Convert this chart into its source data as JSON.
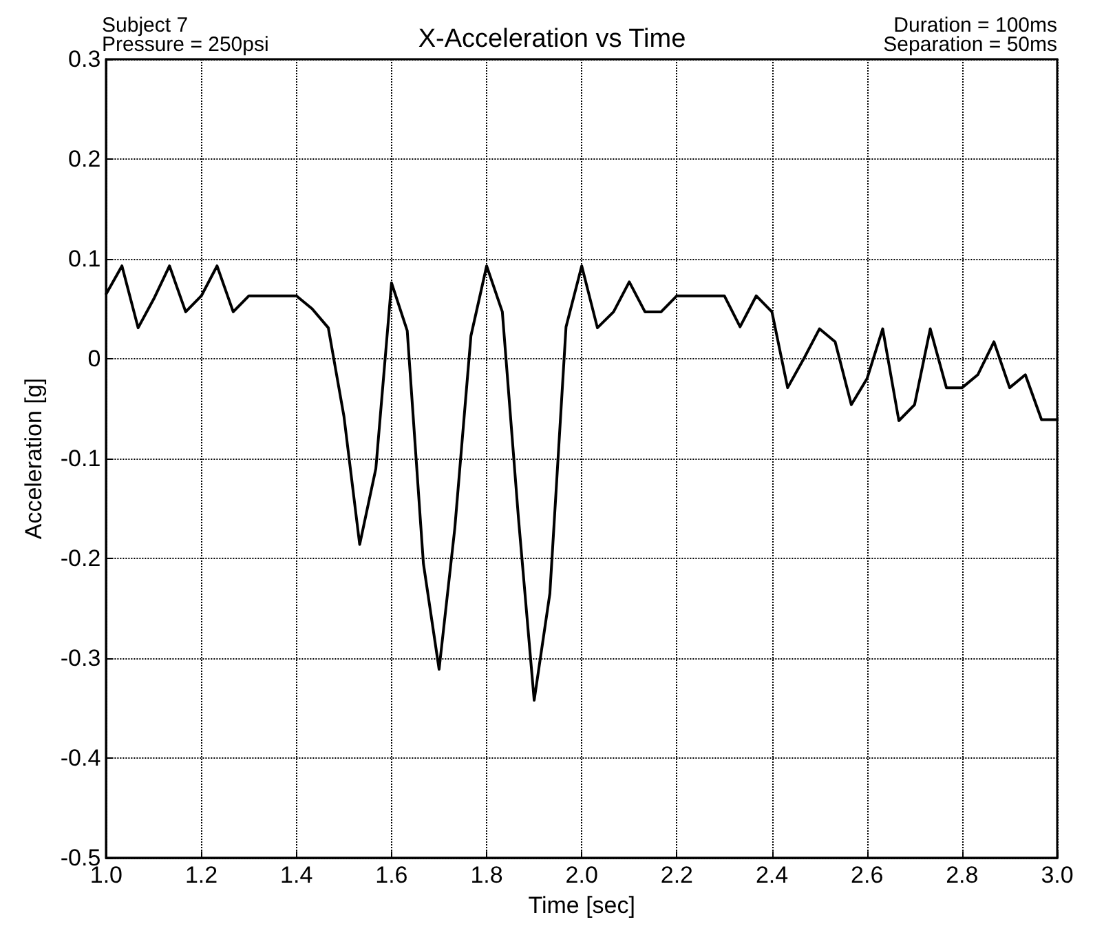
{
  "chart_data": {
    "type": "line",
    "title": "X-Acceleration vs Time",
    "xlabel": "Time [sec]",
    "ylabel": "Acceleration [g]",
    "annotations": [
      "Subject 7",
      "Pressure = 250psi",
      "Duration = 100ms",
      "Separation = 50ms"
    ],
    "x": [
      1.0,
      1.033,
      1.067,
      1.1,
      1.133,
      1.167,
      1.2,
      1.233,
      1.267,
      1.3,
      1.333,
      1.367,
      1.4,
      1.433,
      1.467,
      1.5,
      1.533,
      1.567,
      1.6,
      1.633,
      1.667,
      1.7,
      1.733,
      1.767,
      1.8,
      1.833,
      1.867,
      1.9,
      1.933,
      1.967,
      2.0,
      2.033,
      2.067,
      2.1,
      2.133,
      2.167,
      2.2,
      2.233,
      2.267,
      2.3,
      2.333,
      2.367,
      2.4,
      2.433,
      2.467,
      2.5,
      2.533,
      2.567,
      2.6,
      2.633,
      2.667,
      2.7,
      2.733,
      2.767,
      2.8,
      2.833,
      2.867,
      2.9,
      2.933,
      2.967,
      3.0
    ],
    "series": [
      {
        "color": "#000000",
        "values": [
          0.065,
          0.093,
          0.031,
          0.06,
          0.093,
          0.047,
          0.063,
          0.093,
          0.047,
          0.063,
          0.063,
          0.063,
          0.063,
          0.05,
          0.031,
          -0.058,
          -0.186,
          -0.11,
          0.076,
          0.028,
          -0.205,
          -0.311,
          -0.17,
          0.023,
          0.093,
          0.047,
          -0.16,
          -0.342,
          -0.235,
          0.032,
          0.093,
          0.031,
          0.047,
          0.077,
          0.047,
          0.047,
          0.063,
          0.063,
          0.063,
          0.063,
          0.032,
          0.063,
          0.047,
          -0.029,
          0.0,
          0.03,
          0.017,
          -0.046,
          -0.02,
          0.03,
          -0.062,
          -0.046,
          0.03,
          -0.029,
          -0.029,
          -0.016,
          0.017,
          -0.029,
          -0.016,
          -0.061,
          -0.061
        ]
      }
    ],
    "xlim": [
      1.0,
      3.0
    ],
    "ylim": [
      -0.5,
      0.3
    ],
    "xticks": [
      {
        "value": 1.0,
        "label": "1.0"
      },
      {
        "value": 1.2,
        "label": "1.2"
      },
      {
        "value": 1.4,
        "label": "1.4"
      },
      {
        "value": 1.6,
        "label": "1.6"
      },
      {
        "value": 1.8,
        "label": "1.8"
      },
      {
        "value": 2.0,
        "label": "2.0"
      },
      {
        "value": 2.2,
        "label": "2.2"
      },
      {
        "value": 2.4,
        "label": "2.4"
      },
      {
        "value": 2.6,
        "label": "2.6"
      },
      {
        "value": 2.8,
        "label": "2.8"
      },
      {
        "value": 3.0,
        "label": "3.0"
      }
    ],
    "yticks": [
      -0.5,
      -0.4,
      -0.3,
      -0.2,
      -0.1,
      0,
      0.1,
      0.2,
      0.3
    ],
    "grid": true,
    "marker": "none",
    "line_style": "solid"
  }
}
